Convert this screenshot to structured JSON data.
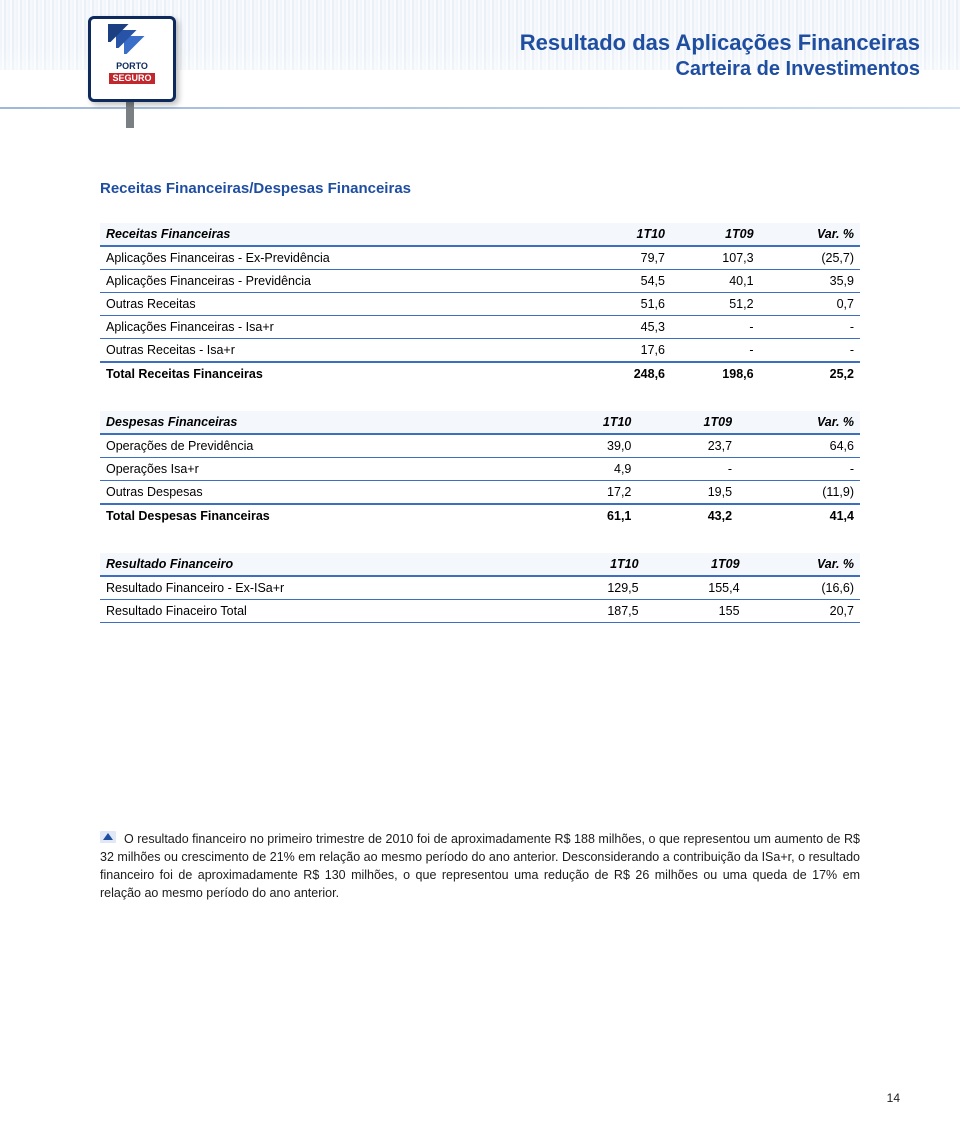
{
  "header": {
    "logo_line1": "PORTO",
    "logo_line2": "SEGURO",
    "title_line1": "Resultado das Aplicações Financeiras",
    "title_line2": "Carteira de Investimentos"
  },
  "section_heading": "Receitas Financeiras/Despesas Financeiras",
  "tables": {
    "receitas": {
      "headers": [
        "Receitas Financeiras",
        "1T10",
        "1T09",
        "Var. %"
      ],
      "rows": [
        [
          "Aplicações Financeiras - Ex-Previdência",
          "79,7",
          "107,3",
          "(25,7)"
        ],
        [
          "Aplicações Financeiras - Previdência",
          "54,5",
          "40,1",
          "35,9"
        ],
        [
          "Outras Receitas",
          "51,6",
          "51,2",
          "0,7"
        ],
        [
          "Aplicações Financeiras - Isa+r",
          "45,3",
          "-",
          "-"
        ],
        [
          "Outras Receitas - Isa+r",
          "17,6",
          "-",
          "-"
        ]
      ],
      "total": [
        "Total Receitas Financeiras",
        "248,6",
        "198,6",
        "25,2"
      ]
    },
    "despesas": {
      "headers": [
        "Despesas Financeiras",
        "1T10",
        "1T09",
        "Var. %"
      ],
      "rows": [
        [
          "Operações de Previdência",
          "39,0",
          "23,7",
          "64,6"
        ],
        [
          "Operações Isa+r",
          "4,9",
          "-",
          "-"
        ],
        [
          "Outras Despesas",
          "17,2",
          "19,5",
          "(11,9)"
        ]
      ],
      "total": [
        "Total Despesas Financeiras",
        "61,1",
        "43,2",
        "41,4"
      ]
    },
    "resultado": {
      "headers": [
        "Resultado Financeiro",
        "1T10",
        "1T09",
        "Var. %"
      ],
      "rows": [
        [
          "Resultado Financeiro - Ex-ISa+r",
          "129,5",
          "155,4",
          "(16,6)"
        ],
        [
          "Resultado Finaceiro Total",
          "187,5",
          "155",
          "20,7"
        ]
      ]
    }
  },
  "paragraph": "O resultado financeiro no primeiro trimestre de 2010 foi de aproximadamente R$ 188 milhões, o que representou um aumento de R$ 32 milhões ou crescimento de 21% em relação ao mesmo período do ano anterior. Desconsiderando a contribuição da ISa+r, o resultado financeiro foi de aproximadamente R$ 130 milhões, o que representou uma redução de R$ 26 milhões ou uma queda de 17% em relação ao mesmo período do ano anterior.",
  "page_number": "14",
  "colors": {
    "brand_blue": "#1f4ea1",
    "rule_blue": "#3d6fbf",
    "header_fill": "#f4f8fd"
  },
  "typography": {
    "title_fontsize_pt": 16,
    "body_fontsize_pt": 9.5,
    "table_fontsize_pt": 9.5
  }
}
